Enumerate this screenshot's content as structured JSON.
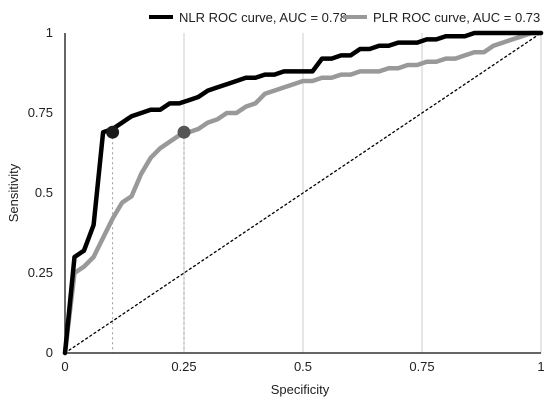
{
  "chart_data": {
    "type": "line",
    "xlabel": "Specificity",
    "ylabel": "Sensitivity",
    "xlim": [
      0,
      1
    ],
    "ylim": [
      0,
      1
    ],
    "xticks": [
      0,
      0.25,
      0.5,
      0.75,
      1
    ],
    "yticks": [
      0,
      0.25,
      0.5,
      0.75,
      1
    ],
    "xtick_labels": [
      "0",
      "0.25",
      "0.5",
      "0.75",
      "1"
    ],
    "ytick_labels": [
      "0",
      "0.25",
      "0.5",
      "0.75",
      "1"
    ],
    "grid": "vertical",
    "legend_position": "top",
    "series": [
      {
        "name": "NLR ROC curve, AUC = 0.78",
        "color": "#000000",
        "x": [
          0,
          0.02,
          0.04,
          0.06,
          0.08,
          0.1,
          0.12,
          0.14,
          0.16,
          0.18,
          0.2,
          0.22,
          0.24,
          0.26,
          0.28,
          0.3,
          0.32,
          0.34,
          0.36,
          0.38,
          0.4,
          0.42,
          0.44,
          0.46,
          0.48,
          0.5,
          0.52,
          0.54,
          0.56,
          0.58,
          0.6,
          0.62,
          0.64,
          0.66,
          0.68,
          0.7,
          0.72,
          0.74,
          0.76,
          0.78,
          0.8,
          0.82,
          0.84,
          0.86,
          0.88,
          0.9,
          0.92,
          0.94,
          0.96,
          0.98,
          1.0
        ],
        "y": [
          0,
          0.3,
          0.32,
          0.4,
          0.69,
          0.7,
          0.72,
          0.74,
          0.75,
          0.76,
          0.76,
          0.78,
          0.78,
          0.79,
          0.8,
          0.82,
          0.83,
          0.84,
          0.85,
          0.86,
          0.86,
          0.87,
          0.87,
          0.88,
          0.88,
          0.88,
          0.88,
          0.92,
          0.92,
          0.93,
          0.93,
          0.95,
          0.95,
          0.96,
          0.96,
          0.97,
          0.97,
          0.97,
          0.98,
          0.98,
          0.99,
          0.99,
          0.99,
          1.0,
          1.0,
          1.0,
          1.0,
          1.0,
          1.0,
          1.0,
          1.0
        ]
      },
      {
        "name": "PLR ROC curve, AUC = 0.73",
        "color": "#999999",
        "x": [
          0,
          0.02,
          0.04,
          0.06,
          0.08,
          0.1,
          0.12,
          0.14,
          0.16,
          0.18,
          0.2,
          0.22,
          0.24,
          0.25,
          0.26,
          0.28,
          0.3,
          0.32,
          0.34,
          0.36,
          0.38,
          0.4,
          0.42,
          0.44,
          0.46,
          0.48,
          0.5,
          0.52,
          0.54,
          0.56,
          0.58,
          0.6,
          0.62,
          0.64,
          0.66,
          0.68,
          0.7,
          0.72,
          0.74,
          0.76,
          0.78,
          0.8,
          0.82,
          0.84,
          0.86,
          0.88,
          0.9,
          0.92,
          0.94,
          0.96,
          0.98,
          1.0
        ],
        "y": [
          0,
          0.25,
          0.27,
          0.3,
          0.36,
          0.42,
          0.47,
          0.49,
          0.56,
          0.61,
          0.64,
          0.66,
          0.68,
          0.69,
          0.69,
          0.7,
          0.72,
          0.73,
          0.75,
          0.75,
          0.77,
          0.78,
          0.81,
          0.82,
          0.83,
          0.84,
          0.85,
          0.85,
          0.86,
          0.86,
          0.87,
          0.87,
          0.88,
          0.88,
          0.88,
          0.89,
          0.89,
          0.9,
          0.9,
          0.91,
          0.91,
          0.92,
          0.92,
          0.93,
          0.94,
          0.94,
          0.96,
          0.97,
          0.98,
          0.99,
          1.0,
          1.0
        ]
      },
      {
        "color": "#000000",
        "style": "dotted",
        "x": [
          0,
          1
        ],
        "y": [
          0,
          1
        ]
      }
    ],
    "markers": [
      {
        "x": 0.1,
        "y": 0.69,
        "color": "#1a1a1a"
      },
      {
        "x": 0.25,
        "y": 0.69,
        "color": "#555555"
      }
    ],
    "reference_lines": [
      {
        "x": 0.1,
        "color": "#999999",
        "style": "dotted"
      },
      {
        "x": 0.25,
        "color": "#999999",
        "style": "dotted"
      }
    ]
  }
}
